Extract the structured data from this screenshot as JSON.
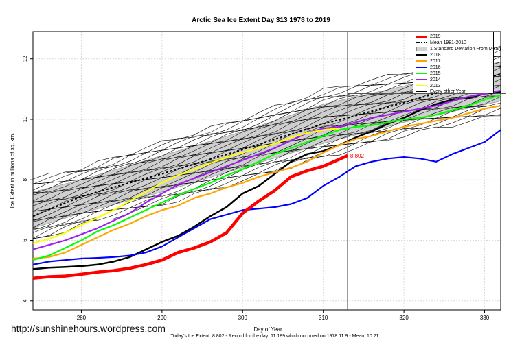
{
  "title": "Arctic Sea Ice Extent Day 313 1978 to 2019",
  "ylabel": "Ice Extent in millions of sq. km.",
  "xlabel": "Day of Year",
  "footer": "Today's Ice Extent: 8.802  - Record for the day: 11.189 which occurred on 1978 11 9  - Mean: 10.21",
  "credit": "http://sunshinehours.wordpress.com",
  "current_value_label": "8.802",
  "legend": {
    "items": [
      {
        "label": "2019",
        "color": "#ff0000",
        "style": "thick"
      },
      {
        "label": "Mean 1981-2010",
        "color": "#000000",
        "style": "dotted"
      },
      {
        "label": "1 Standard Deviation From Mean",
        "color": "#d3d3d3",
        "style": "box"
      },
      {
        "label": "2018",
        "color": "#000000",
        "style": "solid"
      },
      {
        "label": "2017",
        "color": "#ffa500",
        "style": "solid"
      },
      {
        "label": "2016",
        "color": "#0000ff",
        "style": "solid"
      },
      {
        "label": "2015",
        "color": "#00ff00",
        "style": "solid"
      },
      {
        "label": "2014",
        "color": "#a020f0",
        "style": "solid"
      },
      {
        "label": "2013",
        "color": "#ffff00",
        "style": "solid"
      },
      {
        "label": "Every other Year",
        "color": "#000000",
        "style": "thin"
      }
    ]
  },
  "chart_data": {
    "type": "line",
    "title": "Arctic Sea Ice Extent Day 313 1978 to 2019",
    "xlabel": "Day of Year",
    "ylabel": "Ice Extent in millions of sq. km.",
    "xlim": [
      274,
      332
    ],
    "ylim": [
      3.7,
      12.9
    ],
    "x_ticks": [
      280,
      290,
      300,
      310,
      320,
      330
    ],
    "y_ticks": [
      4,
      6,
      8,
      10,
      12
    ],
    "grid": true,
    "legend_position": "top-right",
    "vline_x": 313,
    "hline_y": 10.85,
    "band": {
      "name": "1 Standard Deviation From Mean",
      "x": [
        274,
        280,
        290,
        300,
        310,
        320,
        332
      ],
      "lower": [
        6.4,
        6.9,
        7.6,
        8.4,
        9.2,
        9.9,
        10.6
      ],
      "upper": [
        7.6,
        8.0,
        8.8,
        9.6,
        10.5,
        11.1,
        11.9
      ]
    },
    "series": [
      {
        "name": "2019",
        "color": "#ff0000",
        "width": 4.5,
        "x": [
          274,
          276,
          278,
          280,
          282,
          284,
          286,
          288,
          290,
          292,
          294,
          296,
          298,
          300,
          302,
          304,
          306,
          308,
          310,
          312,
          313
        ],
        "y": [
          4.75,
          4.8,
          4.82,
          4.88,
          4.95,
          5.0,
          5.08,
          5.2,
          5.35,
          5.6,
          5.75,
          5.95,
          6.25,
          6.9,
          7.3,
          7.65,
          8.1,
          8.3,
          8.45,
          8.68,
          8.8
        ]
      },
      {
        "name": "Mean 1981-2010",
        "color": "#000000",
        "width": 2.2,
        "dash": "3,3",
        "x": [
          274,
          280,
          290,
          300,
          310,
          313,
          320,
          332
        ],
        "y": [
          6.8,
          7.45,
          8.2,
          9.0,
          9.85,
          10.05,
          10.55,
          11.5
        ]
      },
      {
        "name": "2018",
        "color": "#000000",
        "width": 2.5,
        "x": [
          274,
          276,
          278,
          280,
          282,
          284,
          286,
          288,
          290,
          292,
          294,
          296,
          298,
          300,
          302,
          304,
          306,
          308,
          310,
          312,
          314,
          316,
          318,
          320,
          322,
          324,
          326,
          328,
          330,
          332
        ],
        "y": [
          5.05,
          5.1,
          5.12,
          5.15,
          5.2,
          5.3,
          5.45,
          5.7,
          5.95,
          6.15,
          6.45,
          6.8,
          7.1,
          7.55,
          7.8,
          8.2,
          8.6,
          8.85,
          8.95,
          9.15,
          9.4,
          9.6,
          9.85,
          10.05,
          10.3,
          10.5,
          10.65,
          10.7,
          10.85,
          10.9
        ]
      },
      {
        "name": "2017",
        "color": "#ffa500",
        "width": 2.2,
        "x": [
          274,
          276,
          278,
          280,
          282,
          284,
          286,
          288,
          290,
          292,
          294,
          296,
          298,
          300,
          302,
          304,
          306,
          308,
          310,
          312,
          314,
          316,
          318,
          320,
          322,
          324,
          326,
          328,
          330,
          332
        ],
        "y": [
          5.4,
          5.45,
          5.6,
          5.85,
          6.1,
          6.35,
          6.55,
          6.8,
          7.0,
          7.15,
          7.4,
          7.55,
          7.75,
          7.9,
          8.1,
          8.25,
          8.4,
          8.6,
          8.9,
          9.15,
          9.35,
          9.45,
          9.6,
          9.75,
          9.85,
          9.95,
          10.05,
          10.2,
          10.35,
          10.45
        ]
      },
      {
        "name": "2016",
        "color": "#0000ff",
        "width": 2.2,
        "x": [
          274,
          276,
          278,
          280,
          282,
          284,
          286,
          288,
          290,
          292,
          294,
          296,
          298,
          300,
          302,
          304,
          306,
          308,
          310,
          312,
          314,
          316,
          318,
          320,
          322,
          324,
          326,
          328,
          330,
          332
        ],
        "y": [
          5.2,
          5.3,
          5.35,
          5.4,
          5.42,
          5.45,
          5.5,
          5.6,
          5.8,
          6.1,
          6.4,
          6.7,
          6.85,
          7.0,
          7.05,
          7.1,
          7.2,
          7.4,
          7.8,
          8.1,
          8.45,
          8.6,
          8.7,
          8.75,
          8.7,
          8.6,
          8.85,
          9.05,
          9.25,
          9.65
        ]
      },
      {
        "name": "2015",
        "color": "#00ff00",
        "width": 2.2,
        "x": [
          274,
          276,
          278,
          280,
          282,
          284,
          286,
          288,
          290,
          292,
          294,
          296,
          298,
          300,
          302,
          304,
          306,
          308,
          310,
          312,
          314,
          316,
          318,
          320,
          322,
          324,
          326,
          328,
          330,
          332
        ],
        "y": [
          5.35,
          5.5,
          5.75,
          6.0,
          6.3,
          6.5,
          6.75,
          7.0,
          7.25,
          7.5,
          7.7,
          7.9,
          8.15,
          8.35,
          8.6,
          8.85,
          9.05,
          9.25,
          9.45,
          9.65,
          9.75,
          9.8,
          9.9,
          10.0,
          10.05,
          10.15,
          10.3,
          10.45,
          10.65,
          10.8
        ]
      },
      {
        "name": "2014",
        "color": "#a020f0",
        "width": 2.2,
        "x": [
          274,
          276,
          278,
          280,
          282,
          284,
          286,
          288,
          290,
          292,
          294,
          296,
          298,
          300,
          302,
          304,
          306,
          308,
          310,
          312,
          314,
          316,
          318,
          320,
          322,
          324,
          326,
          328,
          330,
          332
        ],
        "y": [
          5.7,
          5.85,
          6.0,
          6.2,
          6.4,
          6.65,
          6.9,
          7.25,
          7.55,
          7.85,
          8.05,
          8.25,
          8.45,
          8.65,
          8.85,
          9.05,
          9.3,
          9.55,
          9.7,
          9.75,
          9.9,
          10.05,
          10.15,
          10.25,
          10.35,
          10.45,
          10.6,
          10.75,
          10.85,
          10.95
        ]
      },
      {
        "name": "2013",
        "color": "#ffff00",
        "width": 2.2,
        "x": [
          274,
          276,
          278,
          280,
          282,
          284,
          286,
          288,
          290,
          292,
          294,
          296,
          298,
          300,
          302,
          304,
          306,
          308,
          310,
          312
        ],
        "y": [
          5.9,
          6.05,
          6.25,
          6.5,
          6.75,
          7.0,
          7.3,
          7.6,
          7.9,
          8.15,
          8.35,
          8.55,
          8.75,
          8.9,
          9.05,
          9.2,
          9.4,
          9.55,
          9.65,
          9.7
        ]
      }
    ]
  }
}
